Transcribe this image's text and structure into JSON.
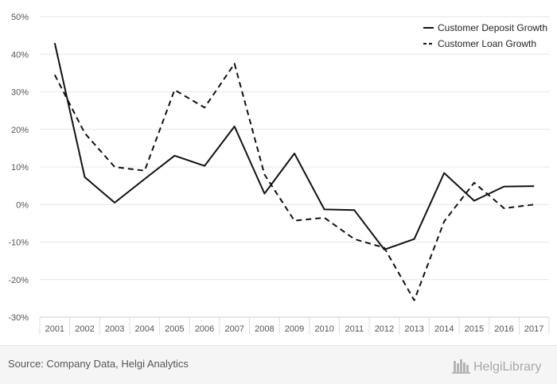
{
  "chart_data": {
    "type": "line",
    "title": "",
    "xlabel": "",
    "ylabel": "",
    "categories": [
      "2001",
      "2002",
      "2003",
      "2004",
      "2005",
      "2006",
      "2007",
      "2008",
      "2009",
      "2010",
      "2011",
      "2012",
      "2013",
      "2014",
      "2015",
      "2016",
      "2017"
    ],
    "ylim": [
      -30,
      50
    ],
    "yticks": [
      -30,
      -20,
      -10,
      0,
      10,
      20,
      30,
      40,
      50
    ],
    "ytick_labels": [
      "-30%",
      "-20%",
      "-10%",
      "0%",
      "10%",
      "20%",
      "30%",
      "40%",
      "50%"
    ],
    "grid": true,
    "legend_position": "top-right",
    "series": [
      {
        "name": "Customer Deposit Growth",
        "style": "solid",
        "color": "#111111",
        "values": [
          43.0,
          7.3,
          0.5,
          6.8,
          13.0,
          10.3,
          20.8,
          2.9,
          13.6,
          -1.3,
          -1.5,
          -12.0,
          -9.2,
          8.4,
          1.0,
          4.8,
          4.9
        ]
      },
      {
        "name": "Customer Loan Growth",
        "style": "dashed",
        "color": "#111111",
        "values": [
          34.5,
          19.0,
          10.0,
          9.0,
          30.5,
          25.8,
          37.5,
          8.0,
          -4.3,
          -3.5,
          -9.2,
          -11.5,
          -25.5,
          -4.5,
          5.8,
          -1.0,
          0.0
        ]
      }
    ]
  },
  "footer": {
    "source": "Source: Company Data, Helgi Analytics",
    "logo_text": "HelgiLibrary"
  }
}
